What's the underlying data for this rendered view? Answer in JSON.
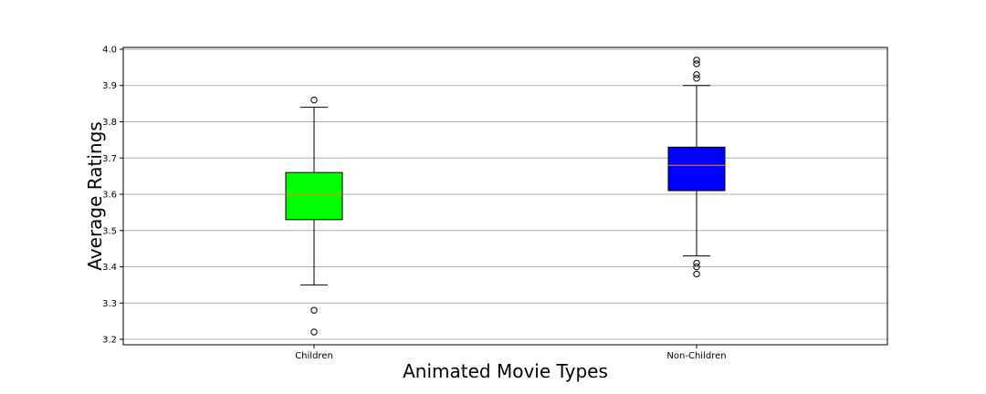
{
  "chart_data": {
    "type": "box",
    "title": "",
    "xlabel": "Animated Movie Types",
    "ylabel": "Average Ratings",
    "ylim": [
      3.185,
      4.005
    ],
    "yticks": [
      3.2,
      3.3,
      3.4,
      3.5,
      3.6,
      3.7,
      3.8,
      3.9,
      4.0
    ],
    "ytick_labels": [
      "3.2",
      "3.3",
      "3.4",
      "3.5",
      "3.6",
      "3.7",
      "3.8",
      "3.9",
      "4.0"
    ],
    "grid": "horizontal",
    "categories": [
      "Children",
      "Non-Children"
    ],
    "boxes": [
      {
        "category": "Children",
        "whisker_low": 3.35,
        "q1": 3.53,
        "median": 3.6,
        "q3": 3.66,
        "whisker_high": 3.84,
        "outliers": [
          3.22,
          3.28,
          3.86
        ],
        "color": "#00ff00"
      },
      {
        "category": "Non-Children",
        "whisker_low": 3.43,
        "q1": 3.61,
        "median": 3.68,
        "q3": 3.73,
        "whisker_high": 3.9,
        "outliers": [
          3.38,
          3.4,
          3.41,
          3.92,
          3.93,
          3.96,
          3.97
        ],
        "color": "#0000ff"
      }
    ],
    "median_color": "#ff7f0e",
    "grid_color": "#b0b0b0"
  }
}
